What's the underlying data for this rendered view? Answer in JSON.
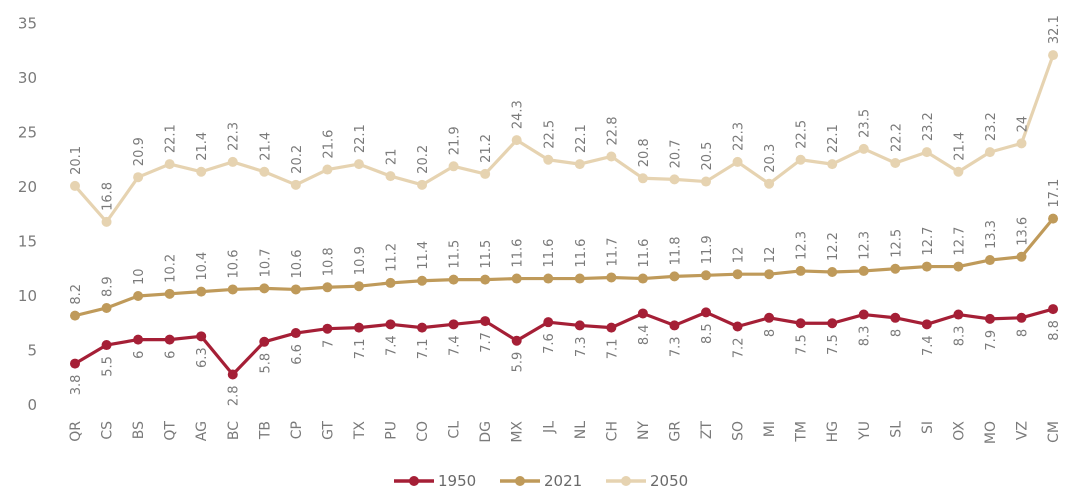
{
  "chart_data": {
    "type": "line",
    "categories": [
      "QR",
      "CS",
      "BS",
      "QT",
      "AG",
      "BC",
      "TB",
      "CP",
      "GT",
      "TX",
      "PU",
      "CO",
      "CL",
      "DG",
      "MX",
      "JL",
      "NL",
      "CH",
      "NY",
      "GR",
      "ZT",
      "SO",
      "MI",
      "TM",
      "HG",
      "YU",
      "SL",
      "SI",
      "OX",
      "MO",
      "VZ",
      "CM"
    ],
    "series": [
      {
        "name": "1950",
        "color": "#a51f36",
        "values": [
          3.8,
          5.5,
          6,
          6,
          6.3,
          2.8,
          5.8,
          6.6,
          7,
          7.1,
          7.4,
          7.1,
          7.4,
          7.7,
          5.9,
          7.6,
          7.3,
          7.1,
          8.4,
          7.3,
          8.5,
          7.2,
          8,
          7.5,
          7.5,
          8.3,
          8,
          7.4,
          8.3,
          7.9,
          8,
          8.8
        ],
        "labels": [
          "3.8",
          "5.5",
          "6",
          "6",
          "6.3",
          "2.8",
          "5.8",
          "6.6",
          "7",
          "7.1",
          "7.4",
          "7.1",
          "7.4",
          "7.7",
          "5.9",
          "7.6",
          "7.3",
          "7.1",
          "8.4",
          "7.3",
          "8.5",
          "7.2",
          "8",
          "7.5",
          "7.5",
          "8.3",
          "8",
          "7.4",
          "8.3",
          "7.9",
          "8",
          "8.8"
        ]
      },
      {
        "name": "2021",
        "color": "#bf9a5a",
        "values": [
          8.2,
          8.9,
          10,
          10.2,
          10.4,
          10.6,
          10.7,
          10.6,
          10.8,
          10.9,
          11.2,
          11.4,
          11.5,
          11.5,
          11.6,
          11.6,
          11.6,
          11.7,
          11.6,
          11.8,
          11.9,
          12,
          12,
          12.3,
          12.2,
          12.3,
          12.5,
          12.7,
          12.7,
          13.3,
          13.6,
          17.1
        ],
        "labels": [
          "8.2",
          "8.9",
          "10",
          "10.2",
          "10.4",
          "10.6",
          "10.7",
          "10.6",
          "10.8",
          "10.9",
          "11.2",
          "11.4",
          "11.5",
          "11.5",
          "11.6",
          "11.6",
          "11.6",
          "11.7",
          "11.6",
          "11.8",
          "11.9",
          "12",
          "12",
          "12.3",
          "12.2",
          "12.3",
          "12.5",
          "12.7",
          "12.7",
          "13.3",
          "13.6",
          "17.1"
        ]
      },
      {
        "name": "2050",
        "color": "#e6d3b1",
        "values": [
          20.1,
          16.8,
          20.9,
          22.1,
          21.4,
          22.3,
          21.4,
          20.2,
          21.6,
          22.1,
          21,
          20.2,
          21.9,
          21.2,
          24.3,
          22.5,
          22.1,
          22.8,
          20.8,
          20.7,
          20.5,
          22.3,
          20.3,
          22.5,
          22.1,
          23.5,
          22.2,
          23.2,
          21.4,
          23.2,
          24,
          32.1
        ],
        "labels": [
          "20.1",
          "16.8",
          "20.9",
          "22.1",
          "21.4",
          "22.3",
          "21.4",
          "20.2",
          "21.6",
          "22.1",
          "21",
          "20.2",
          "21.9",
          "21.2",
          "24.3",
          "22.5",
          "22.1",
          "22.8",
          "20.8",
          "20.7",
          "20.5",
          "22.3",
          "20.3",
          "22.5",
          "22.1",
          "23.5",
          "22.2",
          "23.2",
          "21.4",
          "23.2",
          "24",
          "32.1"
        ]
      }
    ],
    "yticks": [
      "0",
      "5",
      "10",
      "15",
      "20",
      "25",
      "30",
      "35"
    ],
    "ylim": [
      0,
      35
    ],
    "grid": false,
    "legend_placement": "bottom-center",
    "title": "",
    "xlabel": "",
    "ylabel": ""
  }
}
